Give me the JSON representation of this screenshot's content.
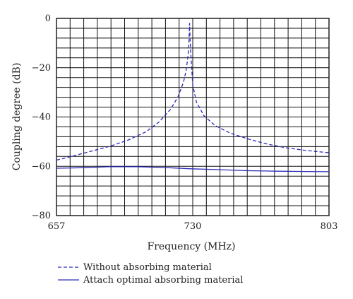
{
  "chart_data": {
    "type": "line",
    "title": "",
    "xlabel": "Frequency (MHz)",
    "ylabel": "Coupling degree (dB)",
    "xlim": [
      657,
      803
    ],
    "ylim": [
      -80,
      0
    ],
    "x_ticks": [
      657,
      730,
      803
    ],
    "x_tick_labels": [
      "657",
      "730",
      "803"
    ],
    "y_ticks": [
      0,
      -20,
      -40,
      -60,
      -80
    ],
    "y_tick_labels": [
      "0",
      "−20",
      "−40",
      "−60",
      "−80"
    ],
    "grid": true,
    "legend_position": "bottom",
    "colors": {
      "series": "#2b2bb8",
      "grid": "#111111"
    },
    "series": [
      {
        "name": "Without absorbing material",
        "style": "dashed",
        "x": [
          657,
          665,
          675,
          685,
          695,
          705,
          712,
          718,
          722,
          725,
          726.5,
          727.5,
          728,
          728.3,
          728.6,
          729,
          730,
          732,
          736,
          742,
          750,
          760,
          770,
          780,
          790,
          803
        ],
        "y": [
          -57.5,
          -56,
          -54,
          -52,
          -49.5,
          -46,
          -42,
          -37,
          -32,
          -26,
          -21,
          -15,
          -9,
          -2,
          -9,
          -15,
          -27,
          -34,
          -39.5,
          -43.5,
          -46.5,
          -49,
          -51,
          -52.5,
          -53.5,
          -54.5
        ]
      },
      {
        "name": "Attach optimal absorbing material",
        "style": "solid",
        "x": [
          657,
          670,
          685,
          700,
          715,
          728,
          745,
          760,
          775,
          790,
          803
        ],
        "y": [
          -60.8,
          -60.6,
          -60.2,
          -60.2,
          -60.5,
          -61,
          -61.4,
          -61.8,
          -62,
          -62.1,
          -62.2
        ]
      }
    ]
  }
}
